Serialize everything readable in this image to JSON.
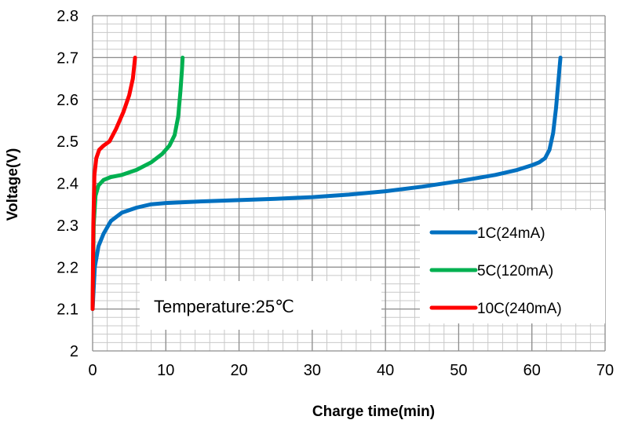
{
  "chart_data": {
    "type": "line",
    "title": "",
    "xlabel": "Charge time(min)",
    "ylabel": "Voltage(V)",
    "xlim": [
      0,
      70
    ],
    "ylim": [
      2.0,
      2.8
    ],
    "x_ticks": [
      "0",
      "10",
      "20",
      "30",
      "40",
      "50",
      "60",
      "70"
    ],
    "y_ticks": [
      "2",
      "2.1",
      "2.2",
      "2.3",
      "2.4",
      "2.5",
      "2.6",
      "2.7",
      "2.8"
    ],
    "grid": "on",
    "legend_position": "bottom-right",
    "annotation": "Temperature:25℃",
    "series": [
      {
        "name": "1C(24mA)",
        "color": "#0070C0",
        "points": [
          [
            0.0,
            2.1
          ],
          [
            0.3,
            2.2
          ],
          [
            0.8,
            2.25
          ],
          [
            1.5,
            2.28
          ],
          [
            2.5,
            2.31
          ],
          [
            4,
            2.33
          ],
          [
            6,
            2.342
          ],
          [
            8,
            2.35
          ],
          [
            10,
            2.353
          ],
          [
            15,
            2.357
          ],
          [
            20,
            2.36
          ],
          [
            25,
            2.363
          ],
          [
            30,
            2.367
          ],
          [
            35,
            2.373
          ],
          [
            40,
            2.381
          ],
          [
            45,
            2.392
          ],
          [
            50,
            2.405
          ],
          [
            55,
            2.42
          ],
          [
            58,
            2.432
          ],
          [
            60,
            2.443
          ],
          [
            61,
            2.45
          ],
          [
            61.8,
            2.46
          ],
          [
            62.4,
            2.48
          ],
          [
            62.9,
            2.52
          ],
          [
            63.3,
            2.58
          ],
          [
            63.6,
            2.64
          ],
          [
            63.9,
            2.7
          ]
        ]
      },
      {
        "name": "5C(120mA)",
        "color": "#00B050",
        "points": [
          [
            0.0,
            2.1
          ],
          [
            0.15,
            2.3
          ],
          [
            0.4,
            2.37
          ],
          [
            0.8,
            2.395
          ],
          [
            1.5,
            2.408
          ],
          [
            2.5,
            2.415
          ],
          [
            4,
            2.42
          ],
          [
            6,
            2.432
          ],
          [
            8,
            2.45
          ],
          [
            9.5,
            2.47
          ],
          [
            10.5,
            2.49
          ],
          [
            11.2,
            2.515
          ],
          [
            11.7,
            2.56
          ],
          [
            12.0,
            2.62
          ],
          [
            12.2,
            2.67
          ],
          [
            12.3,
            2.7
          ]
        ]
      },
      {
        "name": "10C(240mA)",
        "color": "#FF0000",
        "points": [
          [
            0.0,
            2.1
          ],
          [
            0.1,
            2.3
          ],
          [
            0.25,
            2.42
          ],
          [
            0.5,
            2.46
          ],
          [
            0.9,
            2.48
          ],
          [
            1.5,
            2.49
          ],
          [
            2.3,
            2.5
          ],
          [
            3.2,
            2.53
          ],
          [
            4.2,
            2.57
          ],
          [
            5.0,
            2.61
          ],
          [
            5.5,
            2.65
          ],
          [
            5.8,
            2.7
          ]
        ]
      }
    ]
  }
}
